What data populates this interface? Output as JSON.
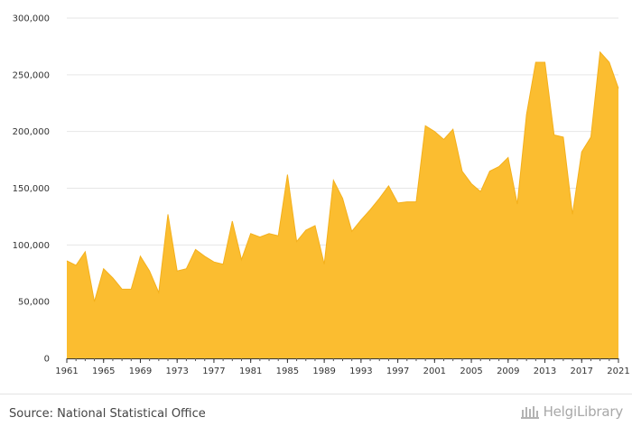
{
  "chart_data": {
    "type": "area",
    "title": "",
    "xlabel": "",
    "ylabel": "",
    "x": [
      1961,
      1962,
      1963,
      1964,
      1965,
      1966,
      1967,
      1968,
      1969,
      1970,
      1971,
      1972,
      1973,
      1974,
      1975,
      1976,
      1977,
      1978,
      1979,
      1980,
      1981,
      1982,
      1983,
      1984,
      1985,
      1986,
      1987,
      1988,
      1989,
      1990,
      1991,
      1992,
      1993,
      1994,
      1995,
      1996,
      1997,
      1998,
      1999,
      2000,
      2001,
      2002,
      2003,
      2004,
      2005,
      2006,
      2007,
      2008,
      2009,
      2010,
      2011,
      2012,
      2013,
      2014,
      2015,
      2016,
      2017,
      2018,
      2019,
      2020,
      2021
    ],
    "values": [
      86000,
      82000,
      94000,
      50000,
      79000,
      71000,
      61000,
      61000,
      90000,
      77000,
      58000,
      127000,
      77000,
      79000,
      96000,
      90000,
      85000,
      83000,
      121000,
      87000,
      110000,
      107000,
      110000,
      108000,
      162000,
      103000,
      113000,
      117000,
      83000,
      157000,
      141000,
      112000,
      122000,
      131000,
      141000,
      152000,
      137000,
      138000,
      138000,
      205000,
      200000,
      193000,
      202000,
      165000,
      154000,
      147000,
      165000,
      169000,
      177000,
      136000,
      215000,
      261000,
      261000,
      197000,
      195000,
      127000,
      182000,
      195000,
      270000,
      261000,
      238000
    ],
    "x_ticks": [
      "1961",
      "1965",
      "1969",
      "1973",
      "1977",
      "1981",
      "1985",
      "1989",
      "1993",
      "1997",
      "2001",
      "2005",
      "2009",
      "2013",
      "2017",
      "2021"
    ],
    "y_ticks": [
      "0",
      "50,000",
      "100,000",
      "150,000",
      "200,000",
      "250,000",
      "300,000"
    ],
    "xlim": [
      1961,
      2021
    ],
    "ylim": [
      0,
      300000
    ],
    "grid": "horizontal",
    "fill_color": "#fbbd30",
    "line_color": "#f4b01c"
  },
  "footer": {
    "source": "Source: National Statistical Office",
    "logo_text": "HelgiLibrary"
  }
}
